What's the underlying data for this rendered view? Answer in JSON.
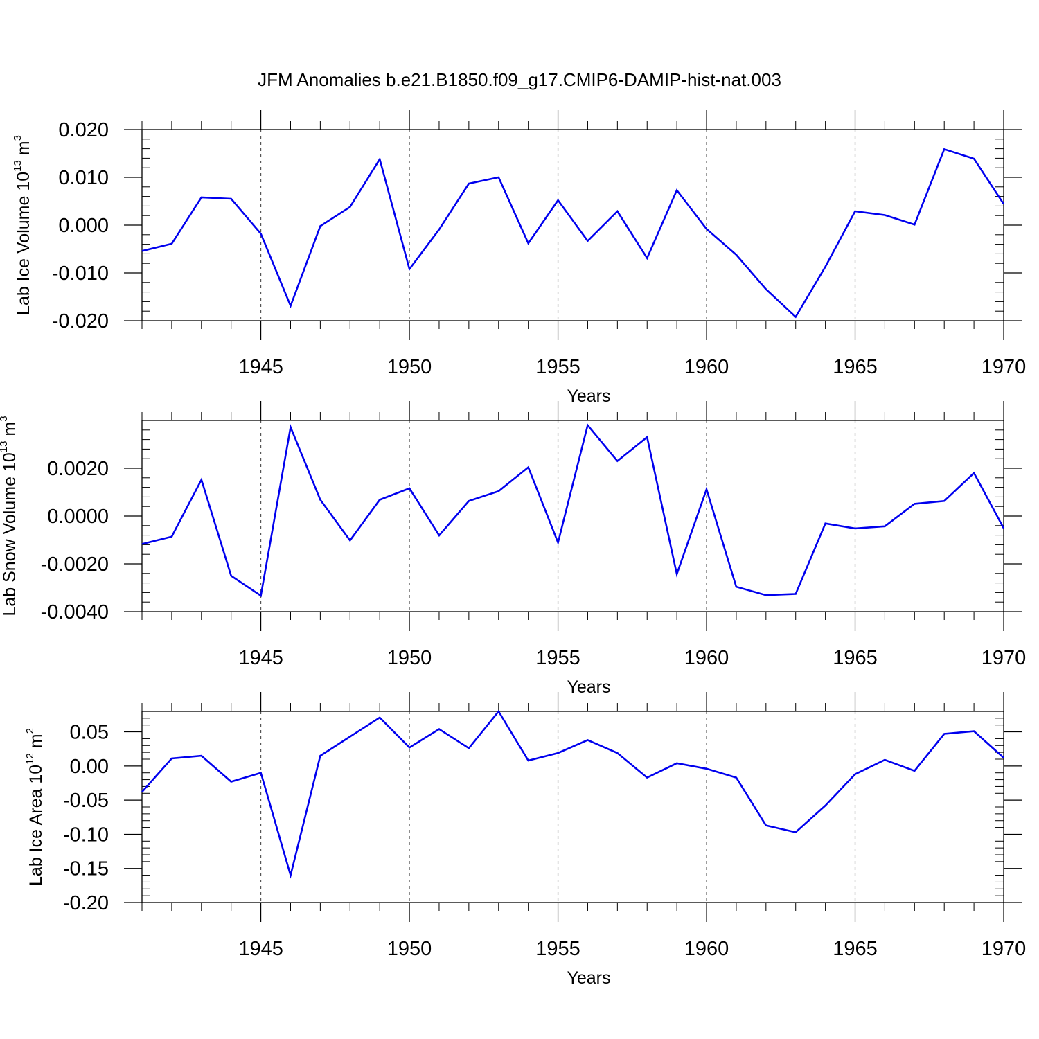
{
  "title": "JFM Anomalies b.e21.B1850.f09_g17.CMIP6-DAMIP-hist-nat.003",
  "colors": {
    "line": "#0000ee",
    "axis": "#000000",
    "grid": "#555555"
  },
  "chart_data": [
    {
      "type": "line",
      "ylabel_main": "Lab Ice Volume 10",
      "ylabel_exp": "13",
      "ylabel_unit": "m",
      "ylabel_unit_exp": "3",
      "xlabel": "Years",
      "xlim": [
        1941,
        1970
      ],
      "ylim": [
        -0.02,
        0.02
      ],
      "xticks": [
        1945,
        1950,
        1955,
        1960,
        1965,
        1970
      ],
      "yticks": [
        -0.02,
        -0.01,
        0.0,
        0.01,
        0.02
      ],
      "ytick_labels": [
        "-0.020",
        "-0.010",
        "0.000",
        "0.010",
        "0.020"
      ],
      "x": [
        1941,
        1942,
        1943,
        1944,
        1945,
        1946,
        1947,
        1948,
        1949,
        1950,
        1951,
        1952,
        1953,
        1954,
        1955,
        1956,
        1957,
        1958,
        1959,
        1960,
        1961,
        1962,
        1963,
        1964,
        1965,
        1966,
        1967,
        1968,
        1969,
        1970
      ],
      "values": [
        -0.0054,
        -0.0039,
        0.0058,
        0.0055,
        -0.0018,
        -0.0169,
        -0.0002,
        0.0038,
        0.0138,
        -0.0092,
        -0.0009,
        0.0087,
        0.01,
        -0.0038,
        0.0052,
        -0.0033,
        0.0029,
        -0.0069,
        0.0073,
        -0.0008,
        -0.0062,
        -0.0134,
        -0.0192,
        -0.0087,
        0.0029,
        0.0021,
        0.0001,
        0.0159,
        0.0139,
        0.0044
      ]
    },
    {
      "type": "line",
      "ylabel_main": "Lab Snow Volume 10",
      "ylabel_exp": "13",
      "ylabel_unit": "m",
      "ylabel_unit_exp": "3",
      "xlabel": "Years",
      "xlim": [
        1941,
        1970
      ],
      "ylim": [
        -0.004,
        0.004
      ],
      "xticks": [
        1945,
        1950,
        1955,
        1960,
        1965,
        1970
      ],
      "yticks": [
        -0.004,
        -0.002,
        0.0,
        0.002
      ],
      "ytick_labels": [
        "-0.0040",
        "-0.0020",
        "0.0000",
        "0.0020"
      ],
      "x": [
        1941,
        1942,
        1943,
        1944,
        1945,
        1946,
        1947,
        1948,
        1949,
        1950,
        1951,
        1952,
        1953,
        1954,
        1955,
        1956,
        1957,
        1958,
        1959,
        1960,
        1961,
        1962,
        1963,
        1964,
        1965,
        1966,
        1967,
        1968,
        1969,
        1970
      ],
      "values": [
        -0.00117,
        -0.00086,
        0.00152,
        -0.0025,
        -0.00333,
        0.00372,
        0.00068,
        -0.00102,
        0.00068,
        0.00116,
        -0.00081,
        0.00063,
        0.00104,
        0.00204,
        -0.00111,
        0.0038,
        0.0023,
        0.0033,
        -0.00243,
        0.00112,
        -0.00296,
        -0.00331,
        -0.00326,
        -0.00031,
        -0.00052,
        -0.00043,
        0.00051,
        0.00063,
        0.0018,
        -0.00051
      ]
    },
    {
      "type": "line",
      "ylabel_main": "Lab Ice Area 10",
      "ylabel_exp": "12",
      "ylabel_unit": "m",
      "ylabel_unit_exp": "2",
      "xlabel": "Years",
      "xlim": [
        1941,
        1970
      ],
      "ylim": [
        -0.2,
        0.08
      ],
      "xticks": [
        1945,
        1950,
        1955,
        1960,
        1965,
        1970
      ],
      "yticks": [
        -0.2,
        -0.15,
        -0.1,
        -0.05,
        0.0,
        0.05
      ],
      "ytick_labels": [
        "-0.20",
        "-0.15",
        "-0.10",
        "-0.05",
        "0.00",
        "0.05"
      ],
      "x": [
        1941,
        1942,
        1943,
        1944,
        1945,
        1946,
        1947,
        1948,
        1949,
        1950,
        1951,
        1952,
        1953,
        1954,
        1955,
        1956,
        1957,
        1958,
        1959,
        1960,
        1961,
        1962,
        1963,
        1964,
        1965,
        1966,
        1967,
        1968,
        1969,
        1970
      ],
      "values": [
        -0.038,
        0.011,
        0.015,
        -0.023,
        -0.01,
        -0.16,
        0.015,
        0.043,
        0.071,
        0.027,
        0.054,
        0.026,
        0.08,
        0.008,
        0.019,
        0.038,
        0.019,
        -0.017,
        0.004,
        -0.004,
        -0.017,
        -0.087,
        -0.097,
        -0.058,
        -0.012,
        0.009,
        -0.007,
        0.047,
        0.051,
        0.012
      ]
    }
  ]
}
